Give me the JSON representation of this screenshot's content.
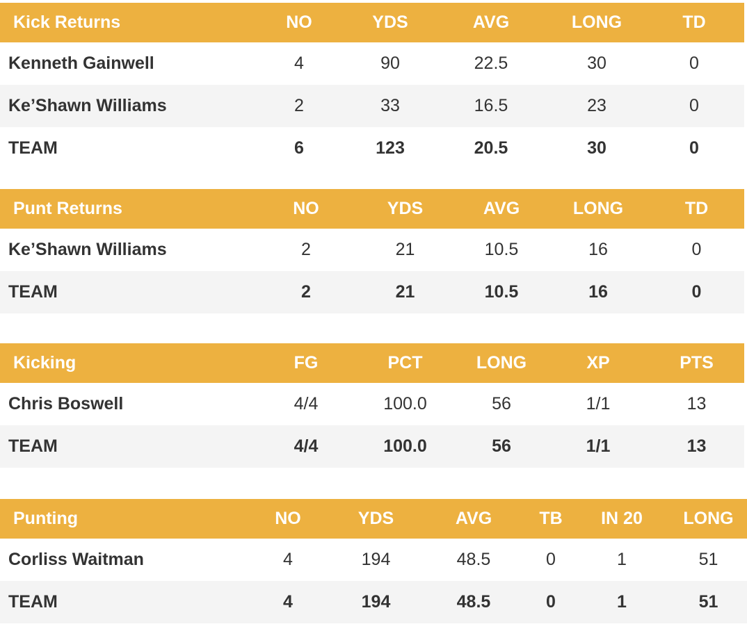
{
  "kick_returns": {
    "headers": [
      "Kick Returns",
      "NO",
      "YDS",
      "AVG",
      "LONG",
      "TD"
    ],
    "rows": [
      [
        "Kenneth Gainwell",
        "4",
        "90",
        "22.5",
        "30",
        "0"
      ],
      [
        "Ke’Shawn Williams",
        "2",
        "33",
        "16.5",
        "23",
        "0"
      ],
      [
        "TEAM",
        "6",
        "123",
        "20.5",
        "30",
        "0"
      ]
    ]
  },
  "punt_returns": {
    "headers": [
      "Punt Returns",
      "NO",
      "YDS",
      "AVG",
      "LONG",
      "TD"
    ],
    "rows": [
      [
        "Ke’Shawn Williams",
        "2",
        "21",
        "10.5",
        "16",
        "0"
      ],
      [
        "TEAM",
        "2",
        "21",
        "10.5",
        "16",
        "0"
      ]
    ]
  },
  "kicking": {
    "headers": [
      "Kicking",
      "FG",
      "PCT",
      "LONG",
      "XP",
      "PTS"
    ],
    "rows": [
      [
        "Chris Boswell",
        "4/4",
        "100.0",
        "56",
        "1/1",
        "13"
      ],
      [
        "TEAM",
        "4/4",
        "100.0",
        "56",
        "1/1",
        "13"
      ]
    ]
  },
  "punting": {
    "headers": [
      "Punting",
      "NO",
      "YDS",
      "AVG",
      "TB",
      "IN 20",
      "LONG"
    ],
    "rows": [
      [
        "Corliss Waitman",
        "4",
        "194",
        "48.5",
        "0",
        "1",
        "51"
      ],
      [
        "TEAM",
        "4",
        "194",
        "48.5",
        "0",
        "1",
        "51"
      ]
    ]
  },
  "colors": {
    "header_bg": "#edb140",
    "header_text": "#ffffff",
    "row_shade": "#f4f4f4",
    "text": "#333333"
  }
}
